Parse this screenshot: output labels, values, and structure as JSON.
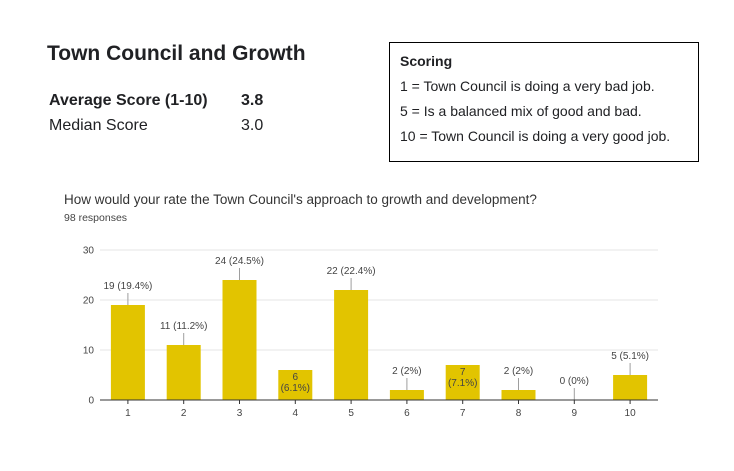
{
  "header": {
    "title": "Town Council and Growth",
    "stats": [
      {
        "label": "Average Score (1-10)",
        "value": "3.8"
      },
      {
        "label": "Median Score",
        "value": "3.0"
      }
    ]
  },
  "scoring": {
    "heading": "Scoring",
    "lines": [
      "1 = Town Council is doing a very bad job.",
      "5 = Is a balanced mix of good and bad.",
      "10 = Town Council is doing a very good job."
    ]
  },
  "survey": {
    "question": "How would your rate the Town Council's approach to growth and development?",
    "responses": "98 responses"
  },
  "colors": {
    "bar": "#e2c400",
    "grid": "#e6e6e6",
    "axis": "#333333"
  },
  "chart_data": {
    "type": "bar",
    "categories": [
      "1",
      "2",
      "3",
      "4",
      "5",
      "6",
      "7",
      "8",
      "9",
      "10"
    ],
    "values": [
      19,
      11,
      24,
      6,
      22,
      2,
      7,
      2,
      0,
      5
    ],
    "data_labels": [
      "19 (19.4%)",
      "11 (11.2%)",
      "24 (24.5%)",
      "6 (6.1%)",
      "22 (22.4%)",
      "2 (2%)",
      "7 (7.1%)",
      "2 (2%)",
      "0 (0%)",
      "5 (5.1%)"
    ],
    "yticks": [
      "0",
      "10",
      "20",
      "30"
    ],
    "ylim": [
      0,
      30
    ],
    "grid": true
  }
}
